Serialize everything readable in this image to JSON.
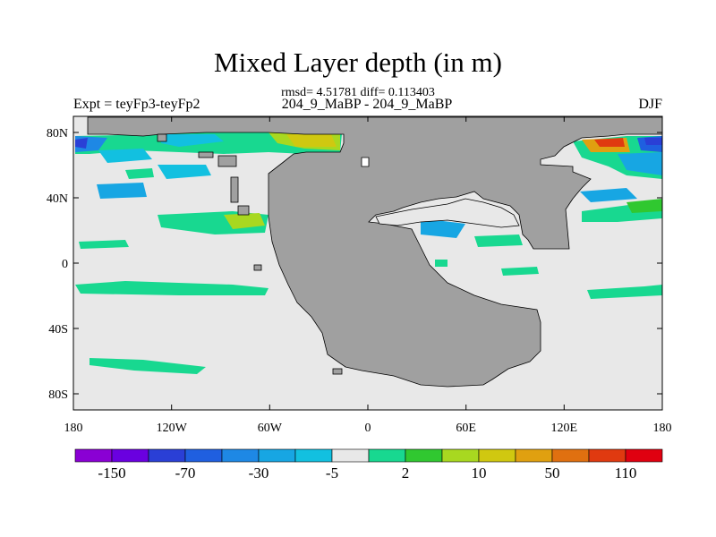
{
  "title": "Mixed Layer depth (in m)",
  "stats_line": "rmsd= 4.51781 diff= 0.113403",
  "left_label": "Expt = teyFp3-teyFp2",
  "center_label": "204_9_MaBP - 204_9_MaBP",
  "right_label": "DJF",
  "lat_ticks": [
    "80N",
    "40N",
    "0",
    "40S",
    "80S"
  ],
  "lon_ticks": [
    "180",
    "120W",
    "60W",
    "0",
    "60E",
    "120E",
    "180"
  ],
  "colorbar": {
    "colors": [
      "#8a00d4",
      "#6a00e0",
      "#2a3fd6",
      "#1f5fe0",
      "#1e88e5",
      "#17a6e3",
      "#12c0e0",
      "#e8e8e8",
      "#18d890",
      "#30c830",
      "#a8d820",
      "#d0c810",
      "#e0a010",
      "#e07010",
      "#e03a10",
      "#e00010"
    ],
    "labels": [
      "-150",
      "-70",
      "-30",
      "-5",
      "2",
      "10",
      "50",
      "110"
    ]
  },
  "colors": {
    "land": "#a0a0a0",
    "background_zero": "#e8e8e8"
  }
}
